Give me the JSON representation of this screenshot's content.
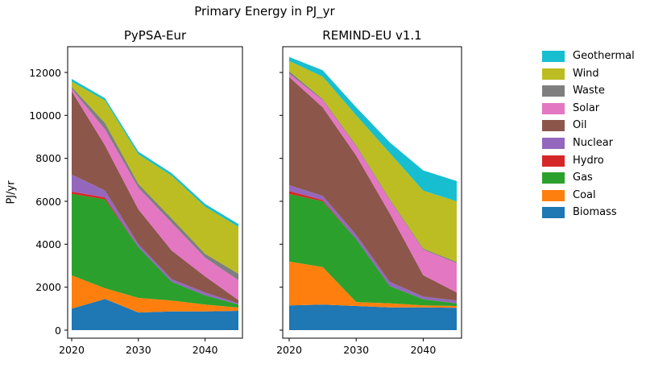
{
  "figure": {
    "title": "Primary Energy in PJ_yr",
    "background_color": "#ffffff",
    "units": "PJ/yr"
  },
  "y_axis": {
    "label": "PJ/yr",
    "tick_values": [
      0,
      2000,
      4000,
      6000,
      8000,
      10000,
      12000
    ],
    "tick_labels": [
      "0",
      "2000",
      "4000",
      "6000",
      "8000",
      "10000",
      "12000"
    ]
  },
  "chart_data": [
    {
      "type": "area",
      "stacked": true,
      "title": "PyPSA-Eur",
      "xlabel": "",
      "ylabel": "PJ/yr",
      "x": [
        2020,
        2025,
        2030,
        2035,
        2040,
        2045
      ],
      "x_tick_values": [
        2020,
        2030,
        2040
      ],
      "x_tick_labels": [
        "2020",
        "2030",
        "2040"
      ],
      "ylim": [
        -375,
        13200
      ],
      "grid": false,
      "series": [
        {
          "name": "Biomass",
          "color": "#1f77b4",
          "values": [
            1000,
            1450,
            820,
            875,
            875,
            900
          ]
        },
        {
          "name": "Coal",
          "color": "#ff7f0e",
          "values": [
            1550,
            500,
            680,
            500,
            315,
            150
          ]
        },
        {
          "name": "Gas",
          "color": "#2ca02c",
          "values": [
            3800,
            4140,
            2375,
            875,
            435,
            140
          ]
        },
        {
          "name": "Hydro",
          "color": "#d62728",
          "values": [
            100,
            90,
            0,
            0,
            0,
            0
          ]
        },
        {
          "name": "Nuclear",
          "color": "#9467bd",
          "values": [
            800,
            320,
            125,
            125,
            125,
            60
          ]
        },
        {
          "name": "Oil",
          "color": "#8c564b",
          "values": [
            3880,
            2100,
            1625,
            1325,
            750,
            150
          ]
        },
        {
          "name": "Solar",
          "color": "#e377c2",
          "values": [
            100,
            750,
            1000,
            1300,
            875,
            925
          ]
        },
        {
          "name": "Waste",
          "color": "#7f7f7f",
          "values": [
            100,
            300,
            185,
            200,
            185,
            300
          ]
        },
        {
          "name": "Wind",
          "color": "#bcbd22",
          "values": [
            250,
            1040,
            1380,
            1990,
            2190,
            2185
          ]
        },
        {
          "name": "Geothermal",
          "color": "#17becf",
          "values": [
            120,
            110,
            120,
            120,
            125,
            130
          ]
        }
      ],
      "totals": [
        11700,
        10800,
        8310,
        7310,
        5875,
        4940
      ]
    },
    {
      "type": "area",
      "stacked": true,
      "title": "REMIND-EU v1.1",
      "xlabel": "",
      "ylabel": "",
      "x": [
        2020,
        2025,
        2030,
        2035,
        2040,
        2045
      ],
      "x_tick_values": [
        2020,
        2030,
        2040
      ],
      "x_tick_labels": [
        "2020",
        "2030",
        "2040"
      ],
      "ylim": [
        -375,
        13200
      ],
      "grid": false,
      "series": [
        {
          "name": "Biomass",
          "color": "#1f77b4",
          "values": [
            1150,
            1190,
            1125,
            1060,
            1060,
            1040
          ]
        },
        {
          "name": "Coal",
          "color": "#ff7f0e",
          "values": [
            2040,
            1750,
            185,
            190,
            90,
            85
          ]
        },
        {
          "name": "Gas",
          "color": "#2ca02c",
          "values": [
            3150,
            3060,
            2940,
            810,
            290,
            125
          ]
        },
        {
          "name": "Hydro",
          "color": "#d62728",
          "values": [
            135,
            60,
            0,
            0,
            0,
            0
          ]
        },
        {
          "name": "Nuclear",
          "color": "#9467bd",
          "values": [
            275,
            190,
            190,
            190,
            120,
            125
          ]
        },
        {
          "name": "Oil",
          "color": "#8c564b",
          "values": [
            5040,
            4125,
            3685,
            3190,
            1000,
            375
          ]
        },
        {
          "name": "Solar",
          "color": "#e377c2",
          "values": [
            150,
            335,
            435,
            620,
            1190,
            1375
          ]
        },
        {
          "name": "Waste",
          "color": "#7f7f7f",
          "values": [
            120,
            50,
            50,
            50,
            50,
            50
          ]
        },
        {
          "name": "Wind",
          "color": "#bcbd22",
          "values": [
            475,
            1050,
            1390,
            2140,
            2700,
            2825
          ]
        },
        {
          "name": "Geothermal",
          "color": "#17becf",
          "values": [
            190,
            290,
            375,
            500,
            940,
            940
          ]
        }
      ],
      "totals": [
        12725,
        12100,
        10375,
        8750,
        7440,
        6940
      ]
    }
  ],
  "legend": {
    "position": "right",
    "items": [
      {
        "label": "Geothermal",
        "color": "#17becf"
      },
      {
        "label": "Wind",
        "color": "#bcbd22"
      },
      {
        "label": "Waste",
        "color": "#7f7f7f"
      },
      {
        "label": "Solar",
        "color": "#e377c2"
      },
      {
        "label": "Oil",
        "color": "#8c564b"
      },
      {
        "label": "Nuclear",
        "color": "#9467bd"
      },
      {
        "label": "Hydro",
        "color": "#d62728"
      },
      {
        "label": "Gas",
        "color": "#2ca02c"
      },
      {
        "label": "Coal",
        "color": "#ff7f0e"
      },
      {
        "label": "Biomass",
        "color": "#1f77b4"
      }
    ]
  }
}
